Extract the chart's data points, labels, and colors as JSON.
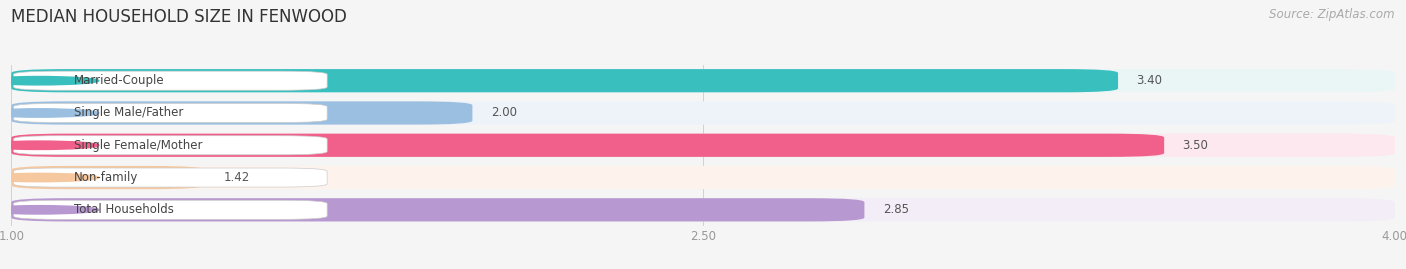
{
  "title": "MEDIAN HOUSEHOLD SIZE IN FENWOOD",
  "source": "Source: ZipAtlas.com",
  "categories": [
    "Married-Couple",
    "Single Male/Father",
    "Single Female/Mother",
    "Non-family",
    "Total Households"
  ],
  "values": [
    3.4,
    2.0,
    3.5,
    1.42,
    2.85
  ],
  "bar_colors": [
    "#3abfbf",
    "#9bbfe0",
    "#f0608a",
    "#f5c8a0",
    "#b898d0"
  ],
  "bar_bg_colors": [
    "#eaf6f6",
    "#eef3f9",
    "#fde8ef",
    "#fdf3ec",
    "#f2edf7"
  ],
  "xlim": [
    1.0,
    4.0
  ],
  "xticks": [
    1.0,
    2.5,
    4.0
  ],
  "title_fontsize": 12,
  "label_fontsize": 8.5,
  "value_fontsize": 8.5,
  "source_fontsize": 8.5,
  "bg_color": "#f5f5f5"
}
